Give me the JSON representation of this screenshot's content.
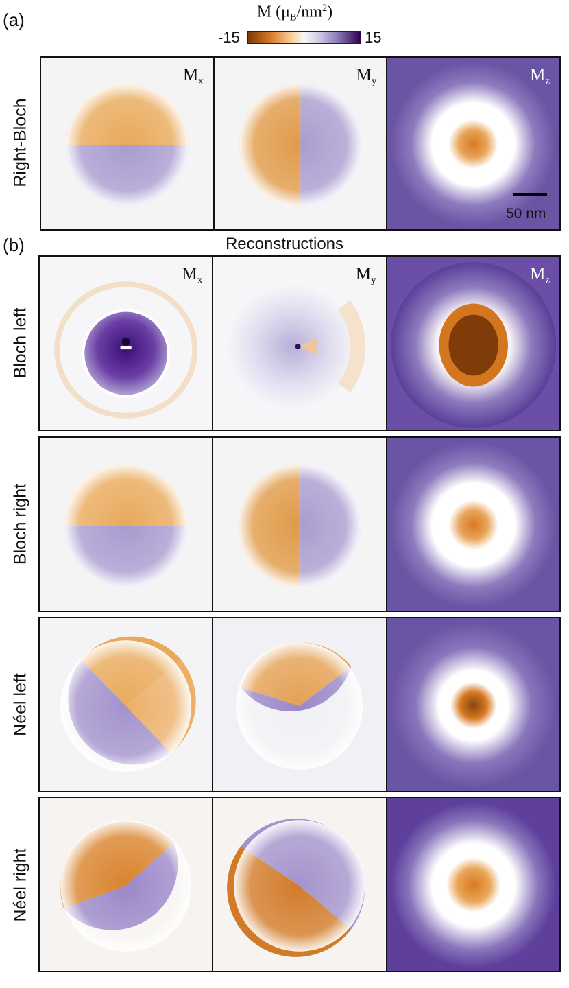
{
  "figure": {
    "panel_a": "(a)",
    "panel_b": "(b)",
    "colorbar": {
      "title_main": "M (μ",
      "title_sub": "B",
      "title_unit": "/nm",
      "title_sup": "2",
      "title_close": ")",
      "min_label": "-15",
      "max_label": "15",
      "colors": [
        "#7f3b08",
        "#d8792a",
        "#f6c58a",
        "#f7f7f7",
        "#cbc7e3",
        "#8a78b6",
        "#2d004b"
      ]
    },
    "components": {
      "mx_base": "M",
      "mx_sub": "x",
      "my_base": "M",
      "my_sub": "y",
      "mz_base": "M",
      "mz_sub": "z"
    },
    "reconstructions_title": "Reconstructions",
    "scale_bar_label": "50 nm",
    "rows": [
      {
        "label": "Right-Bloch"
      },
      {
        "label": "Bloch left"
      },
      {
        "label": "Bloch right"
      },
      {
        "label": "Néel left"
      },
      {
        "label": "Néel right"
      }
    ]
  }
}
